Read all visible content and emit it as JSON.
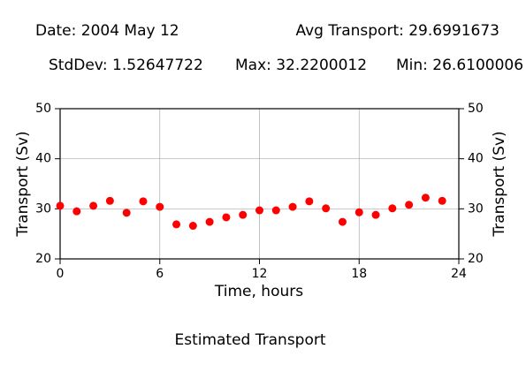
{
  "chart_data": {
    "type": "scatter",
    "title": "Estimated Transport",
    "annotations": [
      "Date: 2004 May 12",
      "Avg Transport: 29.6991673",
      "StdDev: 1.52647722",
      "Max: 32.2200012",
      "Min: 26.6100006"
    ],
    "xlabel": "Time, hours",
    "ylabel": "Transport (Sv)",
    "x": [
      0,
      1,
      2,
      3,
      4,
      5,
      6,
      7,
      8,
      9,
      10,
      11,
      12,
      13,
      14,
      15,
      16,
      17,
      18,
      19,
      20,
      21,
      22,
      23
    ],
    "series": [
      {
        "color": "#ff0000",
        "values": [
          30.6,
          29.5,
          30.6,
          31.6,
          29.2,
          31.5,
          30.4,
          26.9,
          26.61,
          27.4,
          28.3,
          28.8,
          29.7,
          29.7,
          30.4,
          31.5,
          30.1,
          27.4,
          29.3,
          28.8,
          30.1,
          30.8,
          32.22,
          31.6
        ]
      }
    ],
    "xlim": [
      0,
      24
    ],
    "xticks": [
      0,
      6,
      12,
      18,
      24
    ],
    "ylim": [
      20,
      50
    ],
    "yticks": [
      20,
      30,
      40,
      50
    ],
    "grid": true
  }
}
